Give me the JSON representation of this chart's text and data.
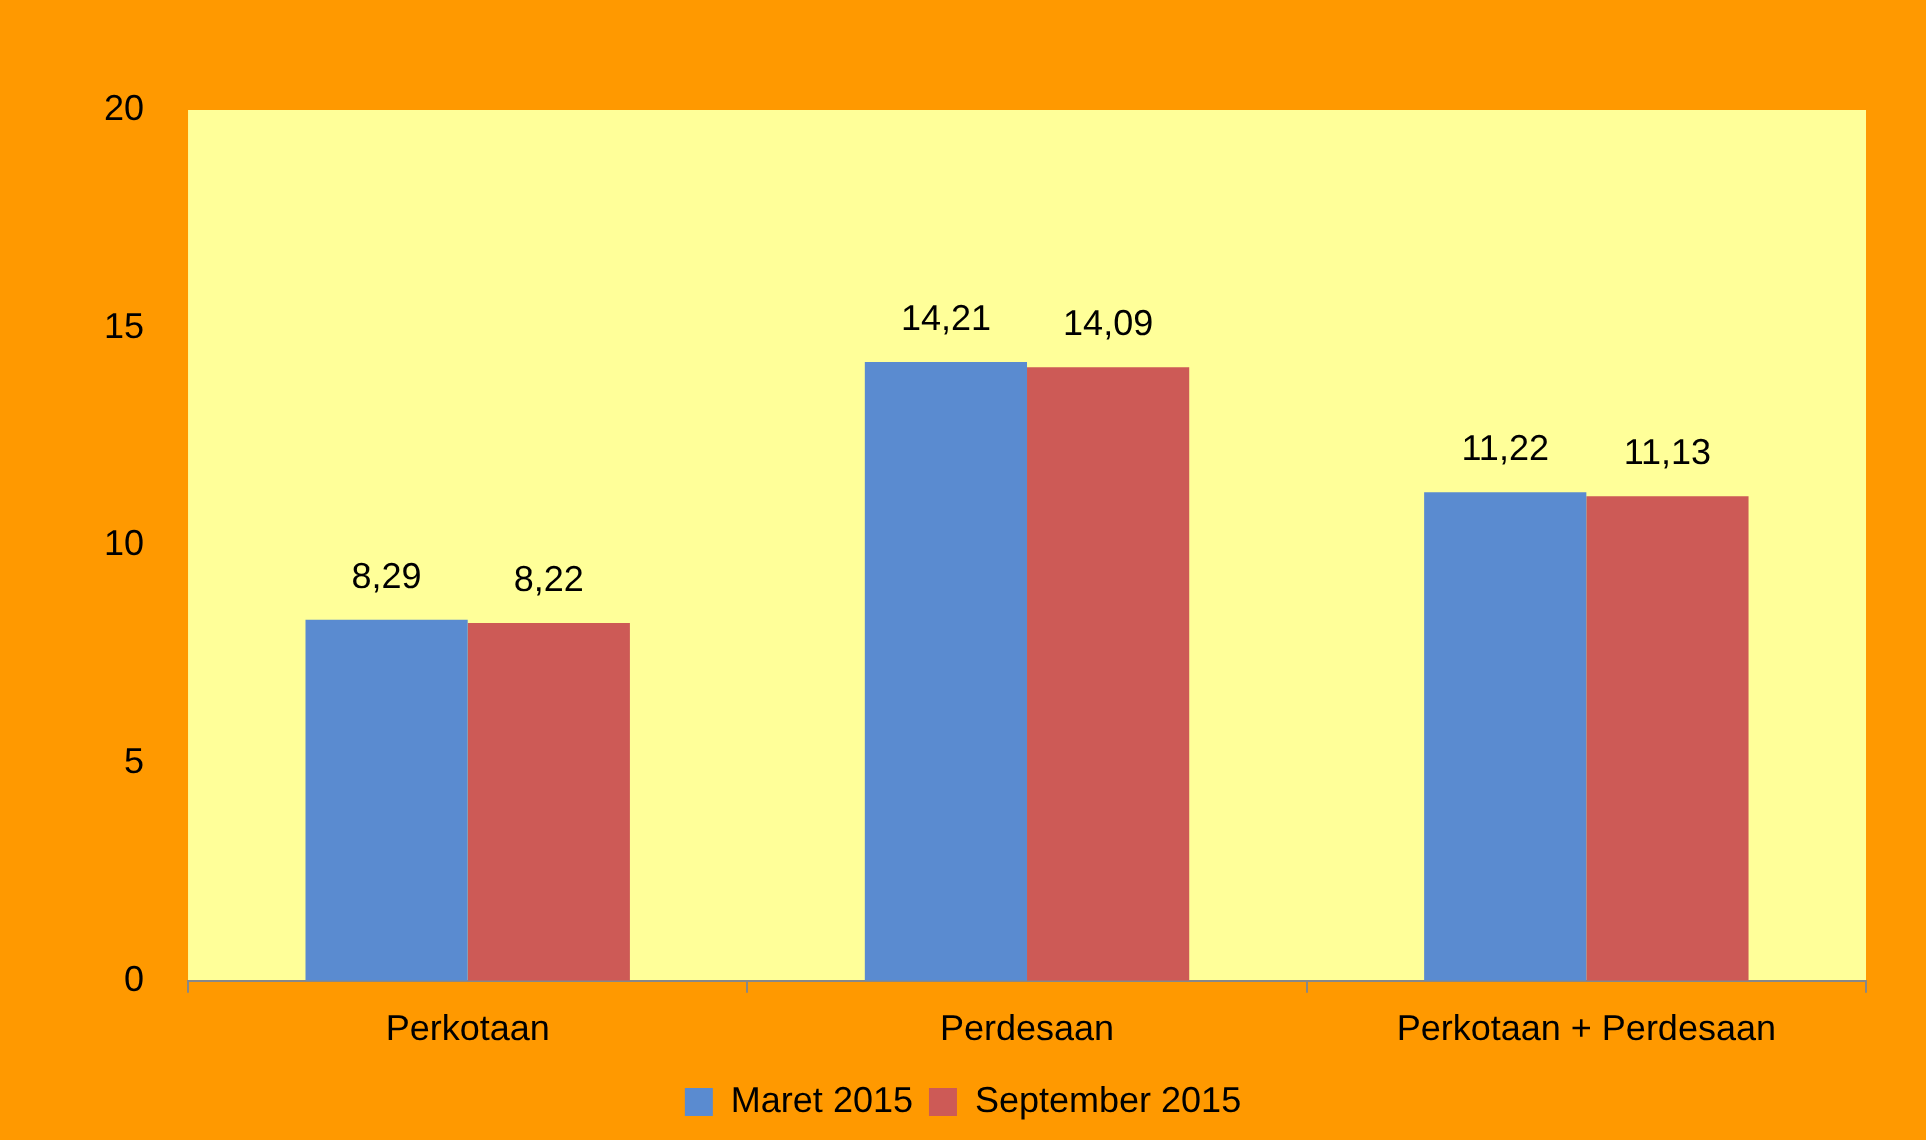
{
  "chart_data": {
    "type": "bar",
    "categories": [
      "Perkotaan",
      "Perdesaan",
      "Perkotaan + Perdesaan"
    ],
    "series": [
      {
        "name": "Maret 2015",
        "color": "#5a8bd0",
        "values": [
          8.29,
          14.21,
          11.22
        ],
        "value_labels": [
          "8,29",
          "14,21",
          "11,22"
        ]
      },
      {
        "name": "September 2015",
        "color": "#cd5a56",
        "values": [
          8.22,
          14.09,
          11.13
        ],
        "value_labels": [
          "8,22",
          "14,09",
          "11,13"
        ]
      }
    ],
    "ylim": [
      0,
      20
    ],
    "yticks": [
      0,
      5,
      10,
      15,
      20
    ],
    "grid": false,
    "legend": "bottom"
  }
}
